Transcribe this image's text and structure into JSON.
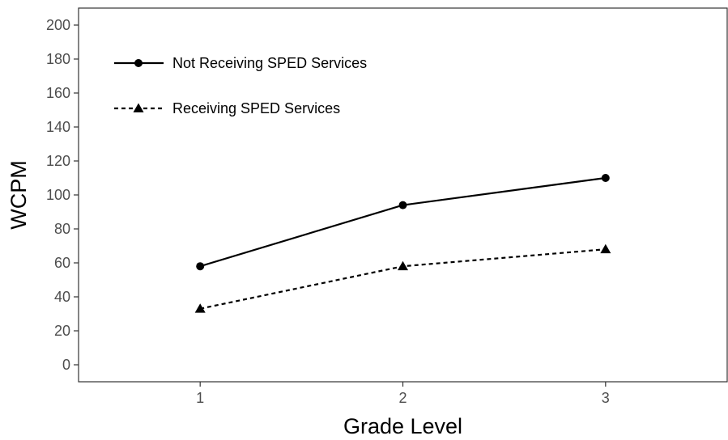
{
  "chart_data": {
    "type": "line",
    "title": "",
    "xlabel": "Grade Level",
    "ylabel": "WCPM",
    "categories": [
      "1",
      "2",
      "3"
    ],
    "xlim": [
      0.4,
      3.6
    ],
    "ylim": [
      -10,
      210
    ],
    "yticks": [
      0,
      20,
      40,
      60,
      80,
      100,
      120,
      140,
      160,
      180,
      200
    ],
    "grid": false,
    "legend_position": "top-left",
    "series": [
      {
        "name": "Not Receiving SPED Services",
        "values": [
          58,
          94,
          110
        ],
        "line_style": "solid",
        "marker": "circle",
        "color": "#000000"
      },
      {
        "name": "Receiving SPED Services",
        "values": [
          33,
          58,
          68
        ],
        "line_style": "dashed",
        "marker": "triangle",
        "color": "#000000"
      }
    ]
  }
}
